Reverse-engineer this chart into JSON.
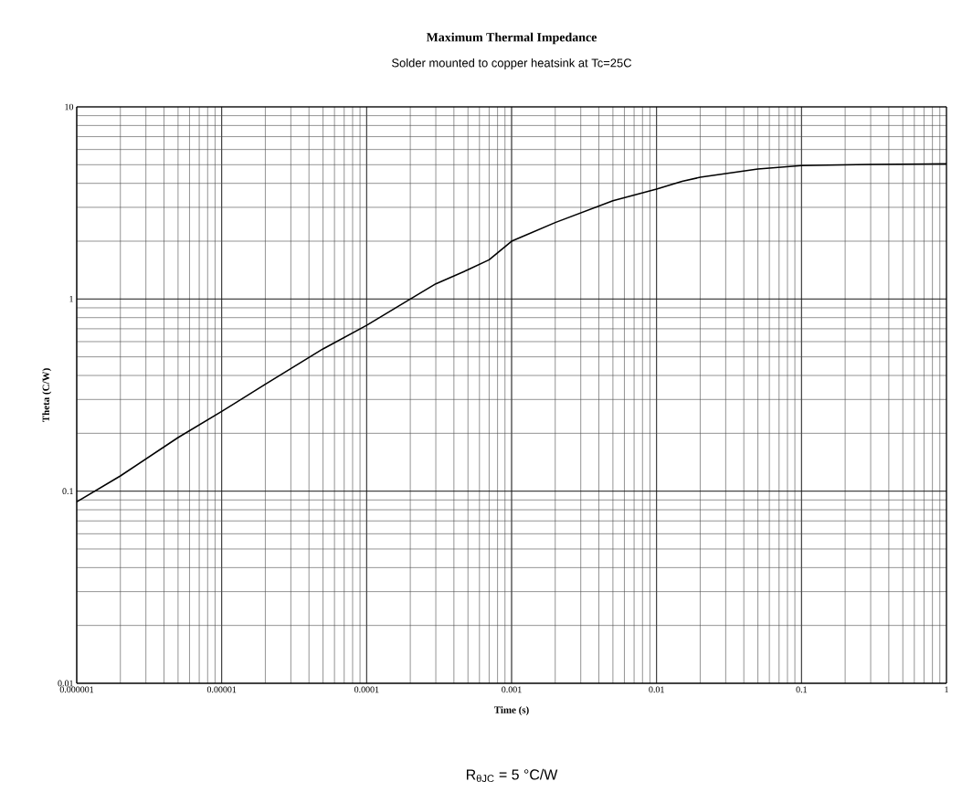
{
  "chart_data": {
    "type": "line",
    "title": "Maximum Thermal Impedance",
    "subtitle": "Solder mounted to copper heatsink at Tc=25C",
    "xlabel": "Time (s)",
    "ylabel": "Theta (C/W)",
    "annotations": [
      "R$_{θJC}$ = 5 °C/W"
    ],
    "x": [
      1e-06,
      2e-06,
      5e-06,
      1e-05,
      2e-05,
      5e-05,
      0.0001,
      0.0002,
      0.0003,
      0.0005,
      0.0007,
      0.001,
      0.002,
      0.005,
      0.01,
      0.015,
      0.02,
      0.05,
      0.1,
      0.3,
      1
    ],
    "series": [
      {
        "color": "#000000",
        "values": [
          0.088,
          0.12,
          0.19,
          0.26,
          0.36,
          0.55,
          0.73,
          1.0,
          1.2,
          1.42,
          1.6,
          2.0,
          2.5,
          3.25,
          3.73,
          4.1,
          4.3,
          4.75,
          4.95,
          5.02,
          5.05
        ]
      }
    ],
    "xlim": [
      1e-06,
      1
    ],
    "ylim": [
      0.01,
      10
    ],
    "xticks": [
      {
        "value": 1e-06,
        "label": "0.000001"
      },
      {
        "value": 1e-05,
        "label": "0.00001"
      },
      {
        "value": 0.0001,
        "label": "0.0001"
      },
      {
        "value": 0.001,
        "label": "0.001"
      },
      {
        "value": 0.01,
        "label": "0.01"
      },
      {
        "value": 0.1,
        "label": "0.1"
      },
      {
        "value": 1,
        "label": "1"
      }
    ],
    "yticks": [
      {
        "value": 0.01,
        "label": "0.01"
      },
      {
        "value": 0.1,
        "label": "0.1"
      },
      {
        "value": 1,
        "label": "1"
      },
      {
        "value": 10,
        "label": "10"
      }
    ],
    "log": "xy",
    "grid": true
  }
}
